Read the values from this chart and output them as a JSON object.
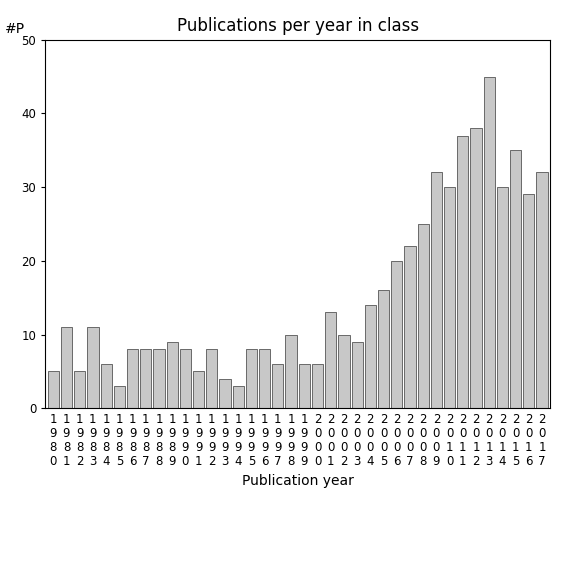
{
  "title": "Publications per year in class",
  "xlabel": "Publication year",
  "ylabel": "#P",
  "ylim": [
    0,
    50
  ],
  "yticks": [
    0,
    10,
    20,
    30,
    40,
    50
  ],
  "years": [
    "1980",
    "1981",
    "1982",
    "1983",
    "1984",
    "1985",
    "1986",
    "1987",
    "1988",
    "1989",
    "1990",
    "1991",
    "1992",
    "1993",
    "1994",
    "1995",
    "1996",
    "1997",
    "1998",
    "1999",
    "2000",
    "2001",
    "2002",
    "2003",
    "2004",
    "2005",
    "2006",
    "2007",
    "2008",
    "2009",
    "2010",
    "2011",
    "2012",
    "2013",
    "2014",
    "2015",
    "2016",
    "2017"
  ],
  "values": [
    5,
    11,
    5,
    11,
    6,
    3,
    8,
    8,
    8,
    9,
    8,
    5,
    8,
    4,
    3,
    8,
    8,
    6,
    10,
    6,
    6,
    13,
    10,
    9,
    14,
    16,
    20,
    22,
    25,
    32,
    30,
    37,
    38,
    45,
    30,
    35,
    29,
    32
  ],
  "bar_color": "#c8c8c8",
  "bar_edgecolor": "#555555",
  "bg_color": "#ffffff",
  "title_fontsize": 12,
  "label_fontsize": 10,
  "tick_fontsize": 8.5
}
